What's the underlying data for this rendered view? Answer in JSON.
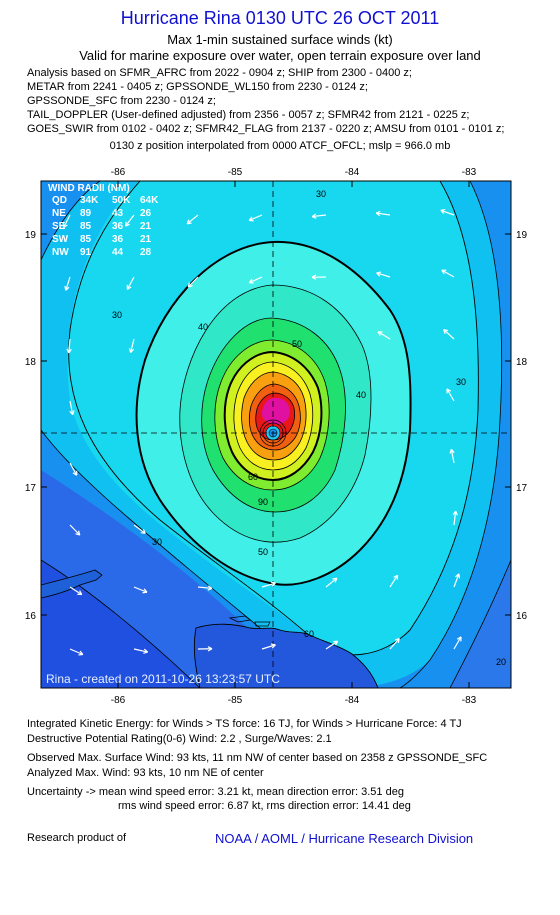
{
  "header": {
    "title": "Hurricane Rina 0130 UTC 26 OCT 2011",
    "subtitle": "Max 1-min sustained surface winds (kt)",
    "validity": "Valid for marine exposure over water, open terrain exposure over land"
  },
  "sources": [
    "Analysis based on SFMR_AFRC from 2022 - 0904 z; SHIP from 2300 - 0400 z;",
    "METAR from 2241 - 0405 z; GPSSONDE_WL150 from 2230 - 0124 z;",
    "GPSSONDE_SFC from 2230 - 0124 z;",
    "TAIL_DOPPLER (User-defined adjusted) from 2356 - 0057 z; SFMR42 from 2121 - 0225 z;",
    "GOES_SWIR from 0102 - 0402 z; SFMR42_FLAG from 2137 - 0220 z; AMSU from 0101 - 0101 z;"
  ],
  "position_note": "0130 z position interpolated from 0000 ATCF_OFCL; mslp = 966.0 mb",
  "map": {
    "lon_ticks": [
      "-86",
      "-85",
      "-84",
      "-83"
    ],
    "lat_ticks": [
      "19",
      "18",
      "17",
      "16"
    ],
    "lon_range": [
      -86.6,
      -82.6
    ],
    "lat_range": [
      15.4,
      19.4
    ],
    "center": {
      "lon": -84.6,
      "lat": 17.42
    },
    "contour_labels": [
      "30",
      "40",
      "50",
      "60",
      "90",
      "30",
      "40",
      "30",
      "30",
      "20",
      "50",
      "60"
    ],
    "created_stamp": "Rina - created on 2011-10-26 13:23:57 UTC",
    "wind_radii": {
      "title": "WIND RADII (NM)",
      "header": [
        "QD",
        "34K",
        "50K",
        "64K"
      ],
      "rows": [
        [
          "NE",
          "89",
          "43",
          "26"
        ],
        [
          "SE",
          "85",
          "36",
          "21"
        ],
        [
          "SW",
          "85",
          "36",
          "21"
        ],
        [
          "NW",
          "91",
          "44",
          "28"
        ]
      ]
    },
    "colors": {
      "low": "#2050e0",
      "mid": "#1890f0",
      "cyan": "#10d8f0",
      "aqua": "#40f0e8",
      "green": "#20e060",
      "lime": "#b0f020",
      "yellow": "#f8f020",
      "orange": "#f88010",
      "red": "#e81010",
      "magenta": "#e010a0"
    }
  },
  "footer": {
    "ike": "Integrated Kinetic Energy:  for Winds > TS force: 16 TJ,  for Winds > Hurricane Force: 4 TJ",
    "dpr": "Destructive Potential Rating(0-6)   Wind: 2.2 , Surge/Waves: 2.1",
    "observed": "Observed Max. Surface Wind: 93 kts, 11 nm NW of center based on 2358 z GPSSONDE_SFC",
    "analyzed": "Analyzed Max. Wind: 93 kts, 10 nm NE of center",
    "uncertainty1": "Uncertainty -> mean wind speed error: 3.21 kt,   mean direction error: 3.51 deg",
    "uncertainty2": "rms wind speed error: 6.87 kt,   rms direction error: 14.41 deg",
    "credit_label": "Research product of",
    "credit_org": "NOAA / AOML / Hurricane Research Division"
  }
}
